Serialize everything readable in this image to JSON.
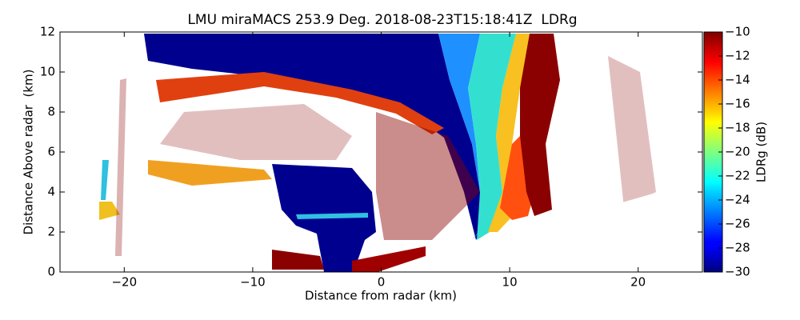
{
  "chart_data": {
    "type": "radar_rhi",
    "title": "LMU miraMACS 253.9 Deg. 2018-08-23T15:18:41Z  LDRg",
    "x_label": "Distance from radar (km)",
    "y_label": "Distance Above radar  (km)",
    "xlim": [
      -25,
      25
    ],
    "ylim": [
      0,
      12
    ],
    "xticks": [
      {
        "value": -20,
        "label": "−20"
      },
      {
        "value": -10,
        "label": "−10"
      },
      0,
      10,
      20
    ],
    "yticks": [
      0,
      2,
      4,
      6,
      8,
      10,
      12
    ],
    "colorbar": {
      "label": "LDRg (dB)",
      "colormap": "jet",
      "lim": [
        -30,
        -10
      ],
      "ticks": [
        {
          "value": -30,
          "label": "−30"
        },
        {
          "value": -28,
          "label": "−28"
        },
        {
          "value": -26,
          "label": "−26"
        },
        {
          "value": -24,
          "label": "−24"
        },
        {
          "value": -22,
          "label": "−22"
        },
        {
          "value": -20,
          "label": "−20"
        },
        {
          "value": -18,
          "label": "−18"
        },
        {
          "value": -16,
          "label": "−16"
        },
        {
          "value": -14,
          "label": "−14"
        },
        {
          "value": -12,
          "label": "−12"
        },
        {
          "value": -10,
          "label": "−10"
        }
      ]
    }
  }
}
